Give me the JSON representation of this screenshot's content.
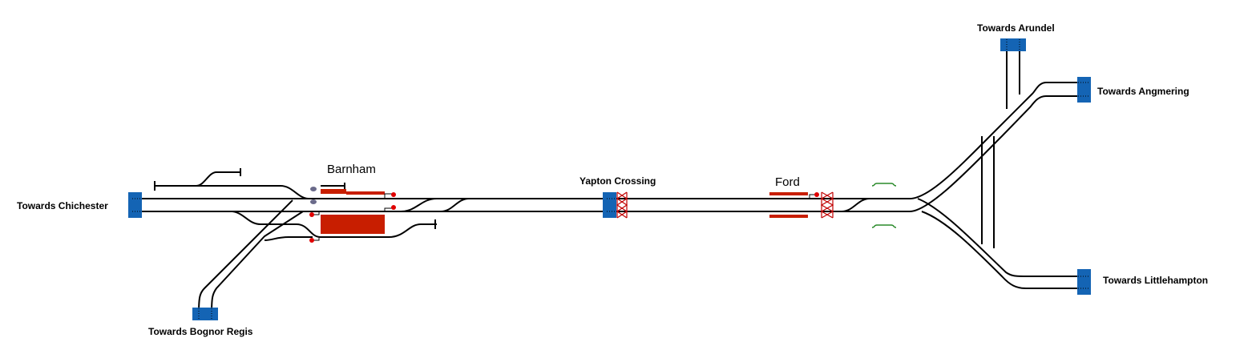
{
  "labels": {
    "chichester": "Towards Chichester",
    "bognor": "Towards Bognor Regis",
    "barnham": "Barnham",
    "yapton": "Yapton Crossing",
    "ford": "Ford",
    "arundel": "Towards Arundel",
    "angmering": "Towards Angmering",
    "littlehampton": "Towards Littlehampton"
  },
  "colors": {
    "track": "#000000",
    "boundary": "#1464b4",
    "platform": "#c81e00",
    "signal": "#e00000",
    "crossing": "#c00000",
    "shunt_signal": "#6a6a8a",
    "marker": "#2a8a2a",
    "background": "#ffffff"
  }
}
